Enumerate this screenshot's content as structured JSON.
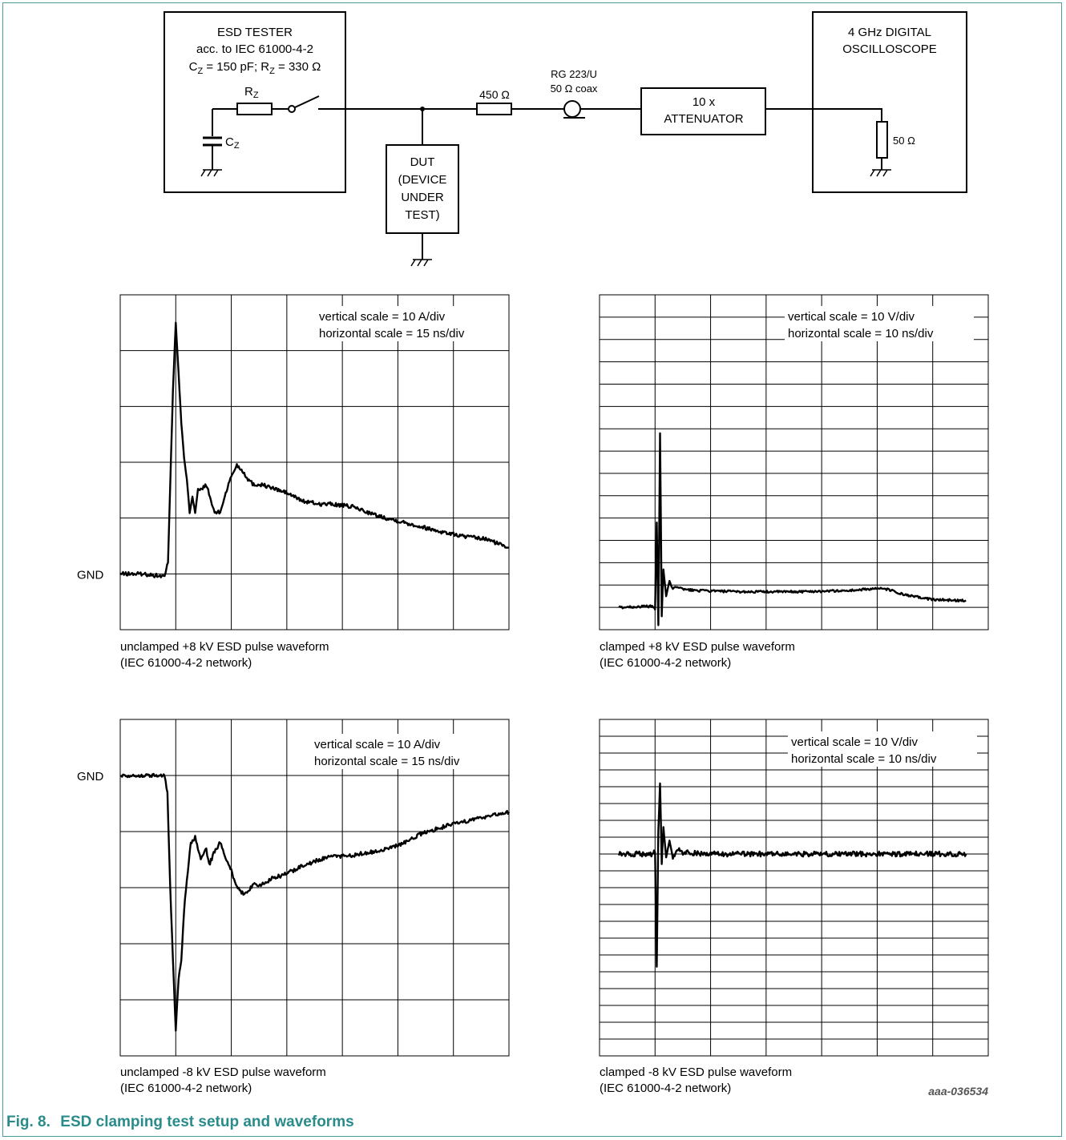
{
  "figure": {
    "number": "Fig. 8.",
    "title": "ESD clamping test setup and waveforms",
    "code": "aaa-036534",
    "accent_color": "#2a8b8b"
  },
  "schematic": {
    "tester": {
      "lines": [
        "ESD TESTER",
        "acc. to IEC 61000-4-2"
      ],
      "cz_text": "C",
      "cz_sub": "Z",
      "cz_val": " = 150 pF; R",
      "rz_sub": "Z",
      "rz_val": " = 330 Ω",
      "r_label": "R",
      "r_sub": "Z",
      "c_label": "C",
      "c_sub": "Z"
    },
    "dut": {
      "lines": [
        "DUT",
        "(DEVICE",
        "UNDER",
        "TEST)"
      ]
    },
    "resistor_450": "450 Ω",
    "coax": {
      "line1": "RG 223/U",
      "line2": "50 Ω coax"
    },
    "attenuator": {
      "line1": "10 x",
      "line2": "ATTENUATOR"
    },
    "scope": {
      "line1": "4 GHz DIGITAL",
      "line2": "OSCILLOSCOPE",
      "resistor": "50 Ω"
    }
  },
  "chart_data": [
    {
      "type": "line",
      "id": "unclamped-pos",
      "caption1": "unclamped +8 kV ESD pulse waveform",
      "caption2": "(IEC 61000-4-2 network)",
      "scale_v": "vertical scale = 10 A/div",
      "scale_h": "horizontal scale = 15 ns/div",
      "gnd_label": "GND",
      "xlim": [
        0,
        7
      ],
      "ylim": [
        -1,
        5
      ],
      "gnd_y": 0,
      "x": [
        0,
        0.4,
        0.8,
        0.86,
        0.9,
        0.95,
        1.0,
        1.05,
        1.1,
        1.15,
        1.2,
        1.25,
        1.3,
        1.35,
        1.4,
        1.45,
        1.55,
        1.65,
        1.7,
        1.8,
        1.9,
        2.0,
        2.1,
        2.2,
        2.3,
        2.4,
        2.55,
        2.7,
        3.0,
        3.3,
        3.6,
        3.8,
        4.2,
        4.6,
        5.0,
        5.4,
        5.8,
        6.2,
        6.6,
        7.0
      ],
      "y": [
        0,
        0,
        -0.05,
        0.2,
        1.6,
        3.3,
        4.5,
        3.6,
        2.7,
        2.1,
        1.7,
        1.1,
        1.4,
        1.1,
        1.5,
        1.5,
        1.6,
        1.25,
        1.1,
        1.1,
        1.45,
        1.75,
        1.95,
        1.85,
        1.7,
        1.6,
        1.6,
        1.55,
        1.45,
        1.3,
        1.25,
        1.25,
        1.2,
        1.05,
        0.95,
        0.85,
        0.75,
        0.67,
        0.62,
        0.47
      ],
      "noise": 0.035,
      "grid": {
        "cols": 7,
        "rows": 6
      }
    },
    {
      "type": "line",
      "id": "clamped-pos",
      "caption1": "clamped +8 kV ESD pulse waveform",
      "caption2": "(IEC 61000-4-2 network)",
      "scale_v": "vertical scale = 10 V/div",
      "scale_h": "horizontal scale = 10 ns/div",
      "gnd_label": "",
      "xlim": [
        0,
        7
      ],
      "ylim": [
        0,
        15
      ],
      "x": [
        0.35,
        0.95,
        1.0,
        1.03,
        1.06,
        1.09,
        1.12,
        1.15,
        1.2,
        1.26,
        1.32,
        1.4,
        1.5,
        1.8,
        2.5,
        3.5,
        4.5,
        5.0,
        5.2,
        5.5,
        6.0,
        6.6
      ],
      "y": [
        1.0,
        1.05,
        0.9,
        4.8,
        0.2,
        8.8,
        0.6,
        2.7,
        1.5,
        2.2,
        1.8,
        1.95,
        1.8,
        1.75,
        1.7,
        1.7,
        1.75,
        1.85,
        1.8,
        1.55,
        1.35,
        1.3
      ],
      "noise": 0.05,
      "grid": {
        "cols": 7,
        "rows": 15
      }
    },
    {
      "type": "line",
      "id": "unclamped-neg",
      "caption1": "unclamped -8 kV ESD pulse waveform",
      "caption2": "(IEC 61000-4-2 network)",
      "scale_v": "vertical scale = 10 A/div",
      "scale_h": "horizontal scale = 15 ns/div",
      "gnd_label": "GND",
      "xlim": [
        0,
        7
      ],
      "ylim": [
        -5,
        1
      ],
      "gnd_y": 0,
      "x": [
        0,
        0.4,
        0.8,
        0.85,
        0.9,
        0.95,
        1.0,
        1.05,
        1.1,
        1.15,
        1.2,
        1.27,
        1.35,
        1.45,
        1.55,
        1.6,
        1.7,
        1.8,
        1.9,
        2.0,
        2.1,
        2.2,
        2.3,
        2.4,
        2.55,
        2.7,
        3.0,
        3.3,
        3.6,
        3.8,
        4.2,
        4.6,
        5.0,
        5.4,
        5.8,
        6.2,
        6.6,
        7.0
      ],
      "y": [
        0,
        0,
        0,
        -0.3,
        -2.0,
        -3.3,
        -4.55,
        -3.6,
        -3.3,
        -2.4,
        -1.9,
        -1.2,
        -1.1,
        -1.5,
        -1.3,
        -1.6,
        -1.35,
        -1.2,
        -1.5,
        -1.7,
        -2.0,
        -2.1,
        -2.05,
        -1.95,
        -1.95,
        -1.85,
        -1.75,
        -1.6,
        -1.5,
        -1.45,
        -1.42,
        -1.35,
        -1.25,
        -1.05,
        -0.92,
        -0.82,
        -0.73,
        -0.65
      ],
      "noise": 0.035,
      "grid": {
        "cols": 7,
        "rows": 6
      }
    },
    {
      "type": "line",
      "id": "clamped-neg",
      "caption1": "clamped -8 kV ESD pulse waveform",
      "caption2": "(IEC 61000-4-2 network)",
      "scale_v": "vertical scale = 10 V/div",
      "scale_h": "horizontal scale = 10 ns/div",
      "gnd_label": "",
      "xlim": [
        0,
        7
      ],
      "ylim": [
        -12,
        8
      ],
      "x": [
        0.35,
        0.95,
        1.0,
        1.03,
        1.06,
        1.09,
        1.12,
        1.15,
        1.2,
        1.26,
        1.32,
        1.4,
        1.5,
        2.0,
        4.0,
        6.6
      ],
      "y": [
        0,
        0,
        0.1,
        -6.7,
        1.4,
        4.2,
        -0.6,
        1.6,
        -0.2,
        0.8,
        -0.2,
        0.25,
        0.1,
        0,
        0,
        0
      ],
      "noise": 0.15,
      "grid": {
        "cols": 7,
        "rows": 20
      }
    }
  ]
}
